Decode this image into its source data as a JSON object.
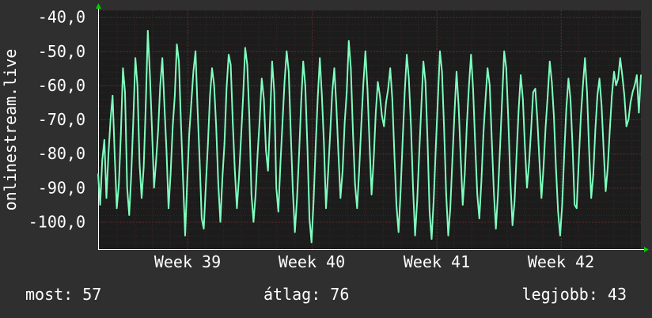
{
  "chart_data": {
    "type": "line",
    "title": "",
    "ylabel": "onlinestream.live",
    "xlabel": "",
    "ylim": [
      -108,
      -38
    ],
    "y_ticks": [
      -40,
      -50,
      -60,
      -70,
      -80,
      -90,
      -100
    ],
    "y_tick_labels": [
      "-40,0",
      "-50,0",
      "-60,0",
      "-70,0",
      "-80,0",
      "-90,0",
      "-100,0"
    ],
    "x_ticks": [
      "Week 39",
      "Week 40",
      "Week 41",
      "Week 42"
    ],
    "grid": true,
    "colors": {
      "background": "#2f2f2f",
      "plot_background": "#1c1c1c",
      "grid": "#5a2a2a",
      "line": "#7fffbf",
      "axis_arrow": "#00cc00",
      "text": "#ffffff"
    },
    "series": [
      {
        "values": [
          -86,
          -95,
          -82,
          -76,
          -93,
          -80,
          -70,
          -63,
          -80,
          -96,
          -89,
          -74,
          -55,
          -62,
          -90,
          -98,
          -86,
          -70,
          -52,
          -60,
          -83,
          -93,
          -84,
          -66,
          -44,
          -57,
          -73,
          -90,
          -82,
          -73,
          -60,
          -52,
          -66,
          -79,
          -96,
          -86,
          -72,
          -63,
          -48,
          -53,
          -71,
          -88,
          -104,
          -88,
          -74,
          -65,
          -56,
          -50,
          -67,
          -82,
          -99,
          -102,
          -89,
          -77,
          -63,
          -55,
          -60,
          -72,
          -89,
          -100,
          -87,
          -77,
          -61,
          -51,
          -54,
          -71,
          -85,
          -96,
          -87,
          -75,
          -63,
          -49,
          -54,
          -69,
          -92,
          -100,
          -92,
          -80,
          -70,
          -58,
          -64,
          -79,
          -85,
          -70,
          -53,
          -62,
          -90,
          -97,
          -83,
          -71,
          -59,
          -50,
          -56,
          -74,
          -91,
          -103,
          -93,
          -80,
          -65,
          -53,
          -60,
          -78,
          -99,
          -106,
          -94,
          -78,
          -64,
          -52,
          -63,
          -77,
          -96,
          -86,
          -74,
          -62,
          -55,
          -66,
          -80,
          -93,
          -85,
          -71,
          -62,
          -47,
          -55,
          -74,
          -89,
          -96,
          -85,
          -72,
          -60,
          -50,
          -61,
          -77,
          -92,
          -82,
          -68,
          -59,
          -63,
          -69,
          -72,
          -65,
          -61,
          -55,
          -64,
          -80,
          -95,
          -103,
          -91,
          -76,
          -62,
          -51,
          -58,
          -72,
          -90,
          -104,
          -94,
          -80,
          -66,
          -53,
          -59,
          -76,
          -97,
          -105,
          -93,
          -78,
          -64,
          -50,
          -56,
          -73,
          -92,
          -104,
          -96,
          -82,
          -68,
          -56,
          -66,
          -81,
          -95,
          -86,
          -71,
          -60,
          -51,
          -61,
          -77,
          -92,
          -99,
          -88,
          -74,
          -64,
          -55,
          -60,
          -76,
          -91,
          -102,
          -92,
          -78,
          -64,
          -50,
          -55,
          -70,
          -88,
          -101,
          -94,
          -80,
          -67,
          -57,
          -64,
          -78,
          -90,
          -83,
          -73,
          -62,
          -61,
          -70,
          -82,
          -93,
          -84,
          -72,
          -63,
          -53,
          -59,
          -69,
          -84,
          -97,
          -104,
          -95,
          -80,
          -67,
          -58,
          -64,
          -78,
          -95,
          -96,
          -82,
          -69,
          -60,
          -52,
          -62,
          -79,
          -93,
          -86,
          -73,
          -63,
          -58,
          -66,
          -79,
          -91,
          -84,
          -73,
          -63,
          -56,
          -60,
          -58,
          -52,
          -57,
          -63,
          -72,
          -70,
          -65,
          -62,
          -60,
          -57,
          -68,
          -57
        ]
      }
    ]
  },
  "stats": {
    "now": "most: 57",
    "avg": "átlag: 76",
    "best": "legjobb: 43"
  }
}
